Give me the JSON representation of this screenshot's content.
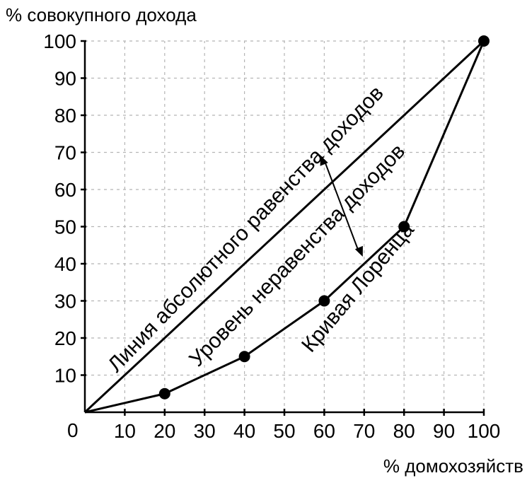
{
  "chart_data": {
    "type": "line",
    "ylabel": "% совокупного дохода",
    "xlabel": "% домохозяйств",
    "origin_label": "0",
    "xlim": [
      0,
      100
    ],
    "ylim": [
      0,
      100
    ],
    "xticks": [
      10,
      20,
      30,
      40,
      50,
      60,
      70,
      80,
      90,
      100
    ],
    "yticks": [
      10,
      20,
      30,
      40,
      50,
      60,
      70,
      80,
      90,
      100
    ],
    "grid": true,
    "series": [
      {
        "name": "Линия абсолютного равенства доходов",
        "x": [
          0,
          100
        ],
        "y": [
          0,
          100
        ],
        "markers": false
      },
      {
        "name": "Кривая Лоренца",
        "x": [
          0,
          20,
          40,
          60,
          80,
          100
        ],
        "y": [
          0,
          5,
          15,
          30,
          50,
          100
        ],
        "markers": true
      }
    ],
    "annotations": [
      {
        "text": "Линия абсолютного равенства доходов"
      },
      {
        "text": "Уровень неравенства доходов"
      },
      {
        "text": "Кривая Лоренца"
      }
    ],
    "gap_arrow": {
      "x": 70,
      "y_from": 70,
      "y_to": 40
    }
  }
}
